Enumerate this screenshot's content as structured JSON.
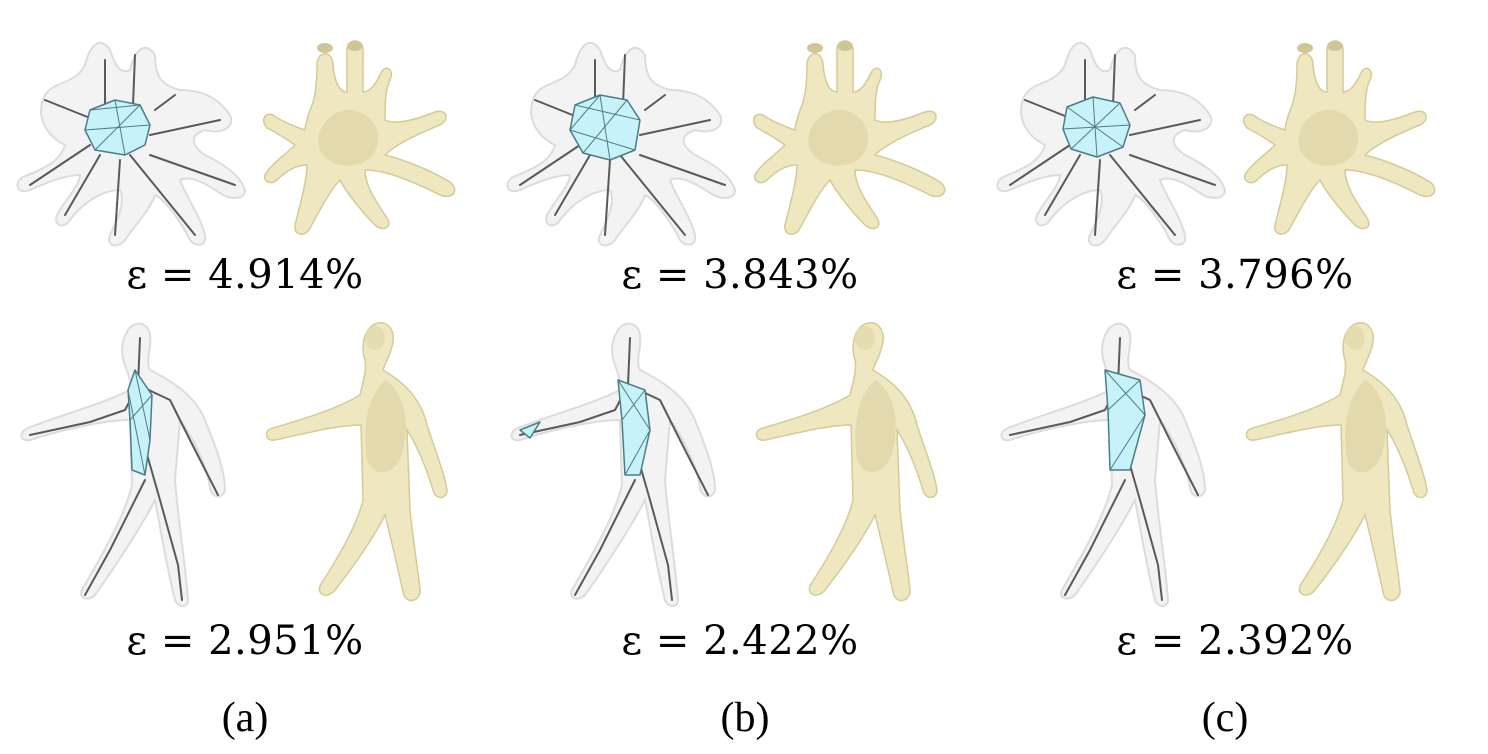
{
  "figure": {
    "rows": [
      {
        "model": "octopus",
        "captions": [
          "ε = 4.914%",
          "ε = 3.843%",
          "ε = 3.796%"
        ]
      },
      {
        "model": "human",
        "captions": [
          "ε = 2.951%",
          "ε = 2.422%",
          "ε = 2.392%"
        ]
      }
    ],
    "column_labels": [
      "(a)",
      "(b)",
      "(c)"
    ],
    "colors": {
      "mesh_fill": "#eee7bf",
      "medial_fill": "#c8f2fa",
      "skeleton": "#5a5a5a",
      "ghost": "#f3f3f3"
    }
  }
}
